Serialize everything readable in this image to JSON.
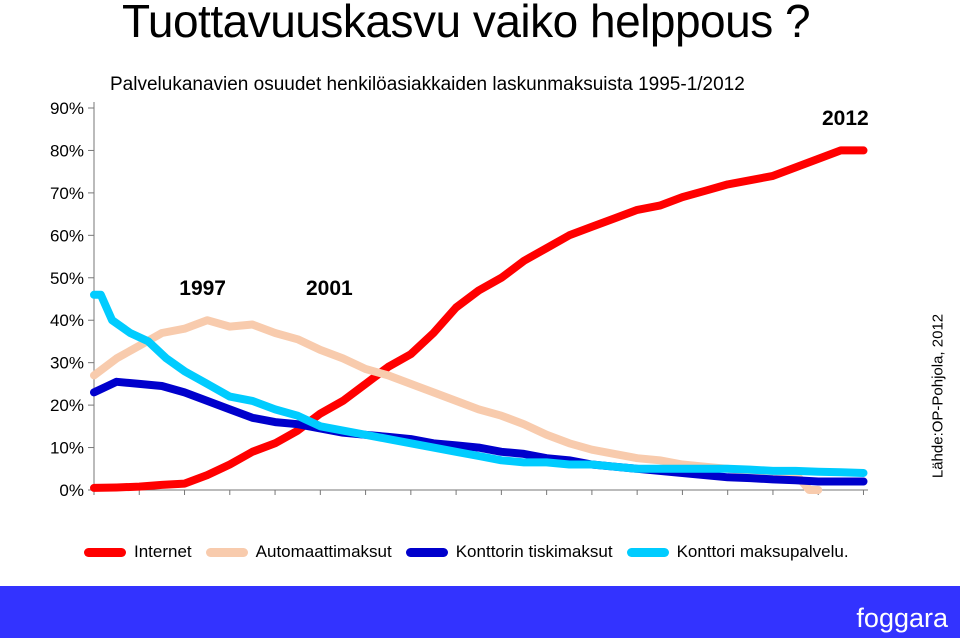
{
  "title": "Tuottavuuskasvu vaiko helppous ?",
  "chart_data": {
    "type": "line",
    "title": "Palvelukanavien osuudet henkilöasiakkaiden laskunmaksuista 1995-1/2012",
    "source": "Lähde:OP-Pohjola, 2012",
    "x_range": [
      1995,
      2012.1
    ],
    "y_ticks": [
      "0%",
      "10%",
      "20%",
      "30%",
      "40%",
      "50%",
      "60%",
      "70%",
      "80%",
      "90%"
    ],
    "ylim": [
      0,
      90
    ],
    "grid": false,
    "legend_position": "bottom",
    "annotations": [
      {
        "text": "1997",
        "x": 1997.4,
        "y": 46
      },
      {
        "text": "2001",
        "x": 2000.2,
        "y": 46
      },
      {
        "text": "2012",
        "x": 2011.6,
        "y": 86
      }
    ],
    "series": [
      {
        "name": "Internet",
        "color": "#ff0000",
        "x": [
          1995,
          1995.5,
          1996,
          1996.5,
          1997,
          1997.5,
          1998,
          1998.5,
          1999,
          1999.5,
          2000,
          2000.5,
          2001,
          2001.5,
          2002,
          2002.5,
          2003,
          2003.5,
          2004,
          2004.5,
          2005,
          2005.5,
          2006,
          2006.5,
          2007,
          2007.5,
          2008,
          2008.5,
          2009,
          2009.5,
          2010,
          2010.5,
          2011,
          2011.5,
          2012
        ],
        "values": [
          0.5,
          0.6,
          0.8,
          1.2,
          1.5,
          3.5,
          6,
          9,
          11,
          14,
          18,
          21,
          25,
          29,
          32,
          37,
          43,
          47,
          50,
          54,
          57,
          60,
          62,
          64,
          66,
          67,
          69,
          70.5,
          72,
          73,
          74,
          76,
          78,
          80,
          80
        ]
      },
      {
        "name": "Automaattimaksut",
        "color": "#f8cbad",
        "x": [
          1995,
          1995.5,
          1996,
          1996.5,
          1997,
          1997.5,
          1998,
          1998.5,
          1999,
          1999.5,
          2000,
          2000.5,
          2001,
          2001.5,
          2002,
          2002.5,
          2003,
          2003.5,
          2004,
          2004.5,
          2005,
          2005.5,
          2006,
          2006.5,
          2007,
          2007.5,
          2008,
          2008.5,
          2009,
          2009.5,
          2010,
          2010.5,
          2010.8,
          2011
        ],
        "values": [
          27,
          31,
          34,
          37,
          38,
          40,
          38.5,
          39,
          37,
          35.5,
          33,
          31,
          28.5,
          27,
          25,
          23,
          21,
          19,
          17.5,
          15.5,
          13,
          11,
          9.5,
          8.5,
          7.5,
          7,
          6,
          5.5,
          5,
          4.5,
          4,
          3.8,
          0,
          0
        ]
      },
      {
        "name": "Konttorin tiskimaksut",
        "color": "#0000cc",
        "x": [
          1995,
          1995.5,
          1996,
          1996.5,
          1997,
          1997.5,
          1998,
          1998.5,
          1999,
          1999.5,
          2000,
          2000.5,
          2001,
          2001.5,
          2002,
          2002.5,
          2003,
          2003.5,
          2004,
          2004.5,
          2005,
          2005.5,
          2006,
          2006.5,
          2007,
          2007.5,
          2008,
          2008.5,
          2009,
          2009.5,
          2010,
          2010.5,
          2011,
          2011.5,
          2012
        ],
        "values": [
          23,
          25.5,
          25,
          24.5,
          23,
          21,
          19,
          17,
          16,
          15.5,
          14.5,
          13.5,
          13,
          12.5,
          12,
          11,
          10.5,
          10,
          9,
          8.5,
          7.5,
          7,
          6,
          5.5,
          5,
          4.5,
          4,
          3.5,
          3,
          2.8,
          2.5,
          2.3,
          2,
          2,
          2
        ]
      },
      {
        "name": "Konttori maksupalvelu.",
        "color": "#00ccff",
        "x": [
          1995,
          1995.15,
          1995.4,
          1995.8,
          1996.2,
          1996.6,
          1997,
          1997.5,
          1998,
          1998.5,
          1999,
          1999.5,
          2000,
          2000.5,
          2001,
          2001.5,
          2002,
          2002.5,
          2003,
          2003.5,
          2004,
          2004.5,
          2005,
          2005.5,
          2006,
          2006.5,
          2007,
          2007.5,
          2008,
          2008.5,
          2009,
          2009.5,
          2010,
          2010.5,
          2011,
          2011.5,
          2012
        ],
        "values": [
          46,
          46,
          40,
          37,
          35,
          31,
          28,
          25,
          22,
          21,
          19,
          17.5,
          15,
          14,
          13,
          12,
          11,
          10,
          9,
          8,
          7,
          6.5,
          6.5,
          6,
          6,
          5.5,
          5,
          5,
          5,
          5,
          5,
          4.8,
          4.5,
          4.5,
          4.3,
          4.2,
          4
        ]
      }
    ]
  },
  "footer": {
    "brand": "foggara",
    "color": "#3333ff"
  }
}
